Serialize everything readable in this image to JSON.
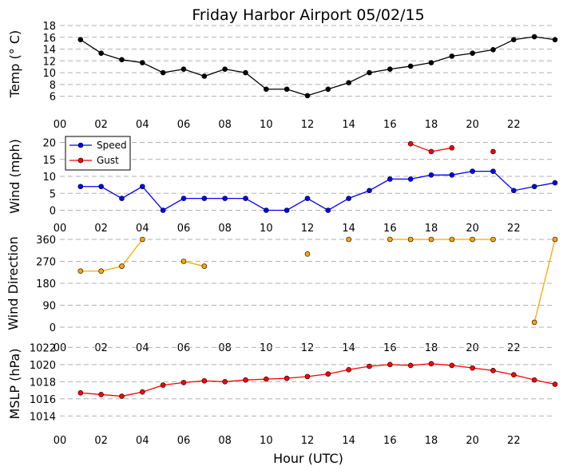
{
  "title": "Friday Harbor Airport 05/02/15",
  "xlabel": "Hour (UTC)",
  "x_tick_labels": [
    "00",
    "02",
    "04",
    "06",
    "08",
    "10",
    "12",
    "14",
    "16",
    "18",
    "20",
    "22"
  ],
  "chart_data": [
    {
      "type": "line",
      "ylabel": "Temp ($^\\circ$C)",
      "ylabel_display": "Temp (° C)",
      "xlim": [
        0,
        24
      ],
      "ylim": [
        5,
        18
      ],
      "yticks": [
        6,
        8,
        10,
        12,
        14,
        16,
        18
      ],
      "color": "#000000",
      "grid": true,
      "series": [
        {
          "x": [
            1,
            2,
            3,
            4,
            5,
            6,
            7,
            8,
            9,
            10,
            11,
            12,
            13,
            14,
            15,
            16,
            17,
            18,
            19,
            20,
            21,
            22,
            23,
            24
          ],
          "values": [
            15.6,
            13.3,
            12.2,
            11.7,
            10.0,
            10.6,
            9.4,
            10.6,
            10.0,
            7.2,
            7.2,
            6.1,
            7.2,
            8.3,
            10.0,
            10.6,
            11.1,
            11.7,
            12.8,
            13.3,
            13.9,
            15.6,
            16.1,
            15.6
          ]
        }
      ]
    },
    {
      "type": "line",
      "ylabel": "Wind (mph)",
      "xlim": [
        0,
        24
      ],
      "ylim": [
        -2,
        22
      ],
      "yticks": [
        0,
        5,
        10,
        15,
        20
      ],
      "grid": true,
      "legend": "top-left",
      "series": [
        {
          "name": "Speed",
          "color": "#0000ff",
          "x": [
            1,
            2,
            3,
            4,
            5,
            6,
            7,
            8,
            9,
            10,
            11,
            12,
            13,
            14,
            15,
            16,
            17,
            18,
            19,
            20,
            21,
            22,
            23,
            24
          ],
          "values": [
            7,
            7,
            3.5,
            7,
            0,
            3.5,
            3.5,
            3.5,
            3.5,
            0,
            0,
            3.5,
            0,
            3.5,
            5.8,
            9.2,
            9.2,
            10.4,
            10.4,
            11.5,
            11.5,
            5.8,
            7,
            8.1
          ]
        },
        {
          "name": "Gust",
          "color": "#ff0000",
          "x": [
            1,
            2,
            3,
            4,
            5,
            6,
            7,
            8,
            9,
            10,
            11,
            12,
            13,
            14,
            15,
            16,
            17,
            18,
            19,
            20,
            21,
            22,
            23,
            24
          ],
          "values": [
            null,
            null,
            null,
            null,
            null,
            null,
            null,
            null,
            null,
            null,
            null,
            null,
            null,
            null,
            null,
            null,
            19.6,
            17.3,
            18.4,
            null,
            17.3,
            null,
            null,
            null
          ]
        }
      ]
    },
    {
      "type": "line",
      "ylabel": "Wind Direction",
      "xlim": [
        0,
        24
      ],
      "ylim": [
        0,
        360
      ],
      "yticks": [
        0,
        90,
        180,
        270,
        360
      ],
      "color": "#ffa500",
      "grid": true,
      "series": [
        {
          "x": [
            1,
            2,
            3,
            4,
            5,
            6,
            7,
            8,
            9,
            10,
            11,
            12,
            13,
            14,
            15,
            16,
            17,
            18,
            19,
            20,
            21,
            22,
            23,
            24
          ],
          "values": [
            230,
            230,
            250,
            360,
            null,
            270,
            250,
            null,
            null,
            null,
            null,
            300,
            null,
            360,
            null,
            360,
            360,
            360,
            360,
            360,
            360,
            null,
            20,
            360
          ]
        }
      ]
    },
    {
      "type": "line",
      "ylabel": "MSLP (hPa)",
      "xlim": [
        0,
        24
      ],
      "ylim": [
        1013,
        1022.5
      ],
      "yticks": [
        1014,
        1016,
        1018,
        1020,
        1022
      ],
      "color": "#ff0000",
      "grid": true,
      "series": [
        {
          "x": [
            1,
            2,
            3,
            4,
            5,
            6,
            7,
            8,
            9,
            10,
            11,
            12,
            13,
            14,
            15,
            16,
            17,
            18,
            19,
            20,
            21,
            22,
            23,
            24
          ],
          "values": [
            1016.7,
            1016.5,
            1016.3,
            1016.8,
            1017.6,
            1017.9,
            1018.1,
            1018.0,
            1018.2,
            1018.3,
            1018.4,
            1018.6,
            1018.9,
            1019.4,
            1019.8,
            1020.0,
            1019.9,
            1020.1,
            1019.9,
            1019.6,
            1019.3,
            1018.8,
            1018.2,
            1017.7
          ]
        }
      ]
    }
  ]
}
